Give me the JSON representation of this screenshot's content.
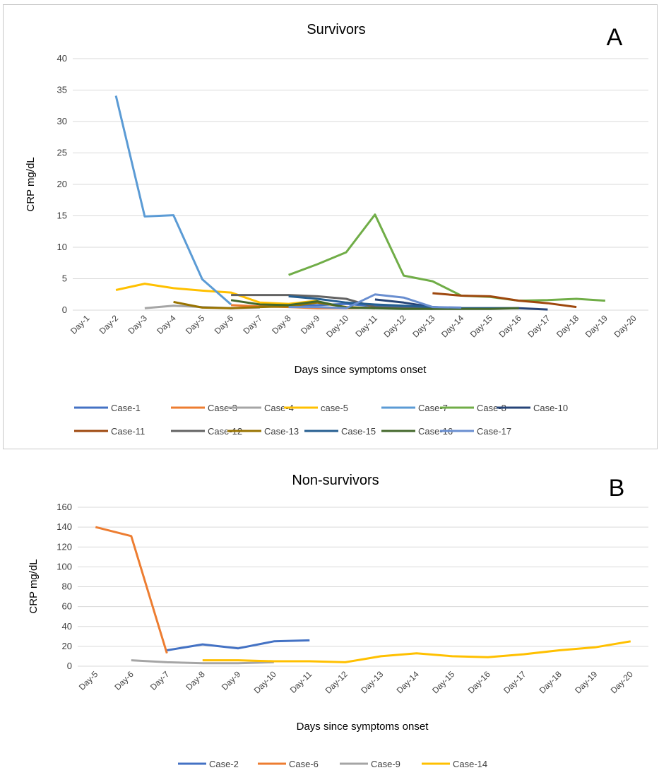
{
  "chart_data": [
    {
      "type": "line",
      "title": "Survivors",
      "panel_label": "A",
      "xlabel": "Days since symptoms onset",
      "ylabel": "CRP mg/dL",
      "ylim": [
        0,
        40
      ],
      "yticks": [
        "0",
        "5",
        "10",
        "15",
        "20",
        "25",
        "30",
        "35",
        "40"
      ],
      "categories": [
        "Day-1",
        "Day-2",
        "Day-3",
        "Day-4",
        "Day-5",
        "Day-6",
        "Day-7",
        "Day-8",
        "Day-9",
        "Day-10",
        "Day-11",
        "Day-12",
        "Day-13",
        "Day-14",
        "Day-15",
        "Day-16",
        "Day-17",
        "Day-18",
        "Day-19",
        "Day-20"
      ],
      "grid": true,
      "legend_position": "bottom",
      "series": [
        {
          "name": "Case-1",
          "color": "#4472C4",
          "values": [
            null,
            null,
            null,
            null,
            null,
            null,
            null,
            0.6,
            0.8,
            1.0,
            0.6,
            0.5,
            0.3,
            null,
            null,
            null,
            null,
            null,
            null,
            null
          ]
        },
        {
          "name": "Case-3",
          "color": "#ED7D31",
          "values": [
            null,
            null,
            null,
            null,
            null,
            0.8,
            0.6,
            0.5,
            0.3,
            0.3,
            0.4,
            null,
            null,
            null,
            null,
            null,
            null,
            null,
            null,
            null
          ]
        },
        {
          "name": "Case-4",
          "color": "#A5A5A5",
          "values": [
            null,
            null,
            0.3,
            0.7,
            0.5,
            0.3,
            0.4,
            null,
            null,
            null,
            null,
            null,
            null,
            null,
            null,
            null,
            null,
            null,
            null,
            null
          ]
        },
        {
          "name": "case-5",
          "color": "#FFC000",
          "values": [
            null,
            3.2,
            4.2,
            3.5,
            3.1,
            2.8,
            1.2,
            1.0,
            1.5,
            null,
            null,
            null,
            null,
            null,
            null,
            null,
            null,
            null,
            null,
            null
          ]
        },
        {
          "name": "Case-7",
          "color": "#5B9BD5",
          "values": [
            null,
            34.1,
            14.9,
            15.1,
            4.9,
            0.9,
            null,
            null,
            null,
            null,
            null,
            null,
            null,
            null,
            null,
            null,
            null,
            null,
            null,
            null
          ]
        },
        {
          "name": "Case-8",
          "color": "#70AD47",
          "values": [
            null,
            null,
            null,
            null,
            null,
            null,
            null,
            5.6,
            7.3,
            9.2,
            15.2,
            5.5,
            4.6,
            2.3,
            2.1,
            1.5,
            1.6,
            1.8,
            1.5,
            null
          ]
        },
        {
          "name": "Case-10",
          "color": "#264478",
          "values": [
            null,
            null,
            null,
            null,
            null,
            null,
            null,
            null,
            null,
            null,
            1.7,
            1.2,
            0.5,
            0.3,
            0.3,
            0.3,
            0.1,
            null,
            null,
            null
          ]
        },
        {
          "name": "Case-11",
          "color": "#9E480E",
          "values": [
            null,
            null,
            null,
            null,
            null,
            null,
            null,
            null,
            null,
            null,
            null,
            null,
            2.7,
            2.3,
            2.2,
            1.5,
            1.1,
            0.5,
            null,
            null
          ]
        },
        {
          "name": "Case-12",
          "color": "#636363",
          "values": [
            null,
            null,
            null,
            null,
            null,
            2.4,
            2.4,
            2.4,
            2.2,
            1.8,
            0.5,
            0.3,
            0.2,
            null,
            null,
            null,
            null,
            null,
            null,
            null
          ]
        },
        {
          "name": "Case-13",
          "color": "#997300",
          "values": [
            null,
            null,
            null,
            1.3,
            0.4,
            0.3,
            0.5,
            0.6,
            1.2,
            0.5,
            0.3,
            null,
            null,
            null,
            null,
            null,
            null,
            null,
            null,
            null
          ]
        },
        {
          "name": "Case-15",
          "color": "#255E91",
          "values": [
            null,
            null,
            null,
            null,
            null,
            null,
            null,
            2.2,
            1.8,
            1.2,
            0.9,
            0.7,
            0.5,
            0.3,
            0.3,
            0.3,
            null,
            null,
            null,
            null
          ]
        },
        {
          "name": "Case-16",
          "color": "#43682B",
          "values": [
            null,
            null,
            null,
            null,
            null,
            1.6,
            0.9,
            0.8,
            1.4,
            0.4,
            0.3,
            0.2,
            0.2,
            0.2,
            0.2,
            0.3,
            null,
            null,
            null,
            null
          ]
        },
        {
          "name": "Case-17",
          "color": "#698ED0",
          "values": [
            null,
            null,
            null,
            null,
            null,
            null,
            null,
            0.5,
            0.5,
            0.3,
            2.5,
            2.0,
            0.5,
            0.4,
            null,
            null,
            null,
            null,
            null,
            null
          ]
        }
      ]
    },
    {
      "type": "line",
      "title": "Non-survivors",
      "panel_label": "B",
      "xlabel": "Days since symptoms onset",
      "ylabel": "CRP mg/dL",
      "ylim": [
        0,
        160
      ],
      "yticks": [
        "0",
        "20",
        "40",
        "60",
        "80",
        "100",
        "120",
        "140",
        "160"
      ],
      "categories": [
        "Day-5",
        "Day-6",
        "Day-7",
        "Day-8",
        "Day-9",
        "Day-10",
        "Day-11",
        "Day-12",
        "Day-13",
        "Day-14",
        "Day-15",
        "Day-16",
        "Day-17",
        "Day-18",
        "Day-19",
        "Day-20"
      ],
      "grid": true,
      "legend_position": "bottom",
      "series": [
        {
          "name": "Case-2",
          "color": "#4472C4",
          "values": [
            null,
            null,
            16,
            22,
            18,
            25,
            26,
            null,
            null,
            null,
            null,
            null,
            null,
            null,
            null,
            null
          ]
        },
        {
          "name": "Case-6",
          "color": "#ED7D31",
          "values": [
            140,
            131,
            13,
            null,
            null,
            null,
            null,
            null,
            null,
            null,
            null,
            null,
            null,
            null,
            null,
            null
          ]
        },
        {
          "name": "Case-9",
          "color": "#A5A5A5",
          "values": [
            null,
            6,
            4,
            3,
            3,
            4,
            null,
            null,
            null,
            null,
            null,
            null,
            null,
            null,
            null,
            null
          ]
        },
        {
          "name": "Case-14",
          "color": "#FFC000",
          "values": [
            null,
            null,
            null,
            6,
            6,
            5,
            5,
            4,
            10,
            13,
            10,
            9,
            12,
            16,
            19,
            25
          ]
        }
      ]
    }
  ]
}
